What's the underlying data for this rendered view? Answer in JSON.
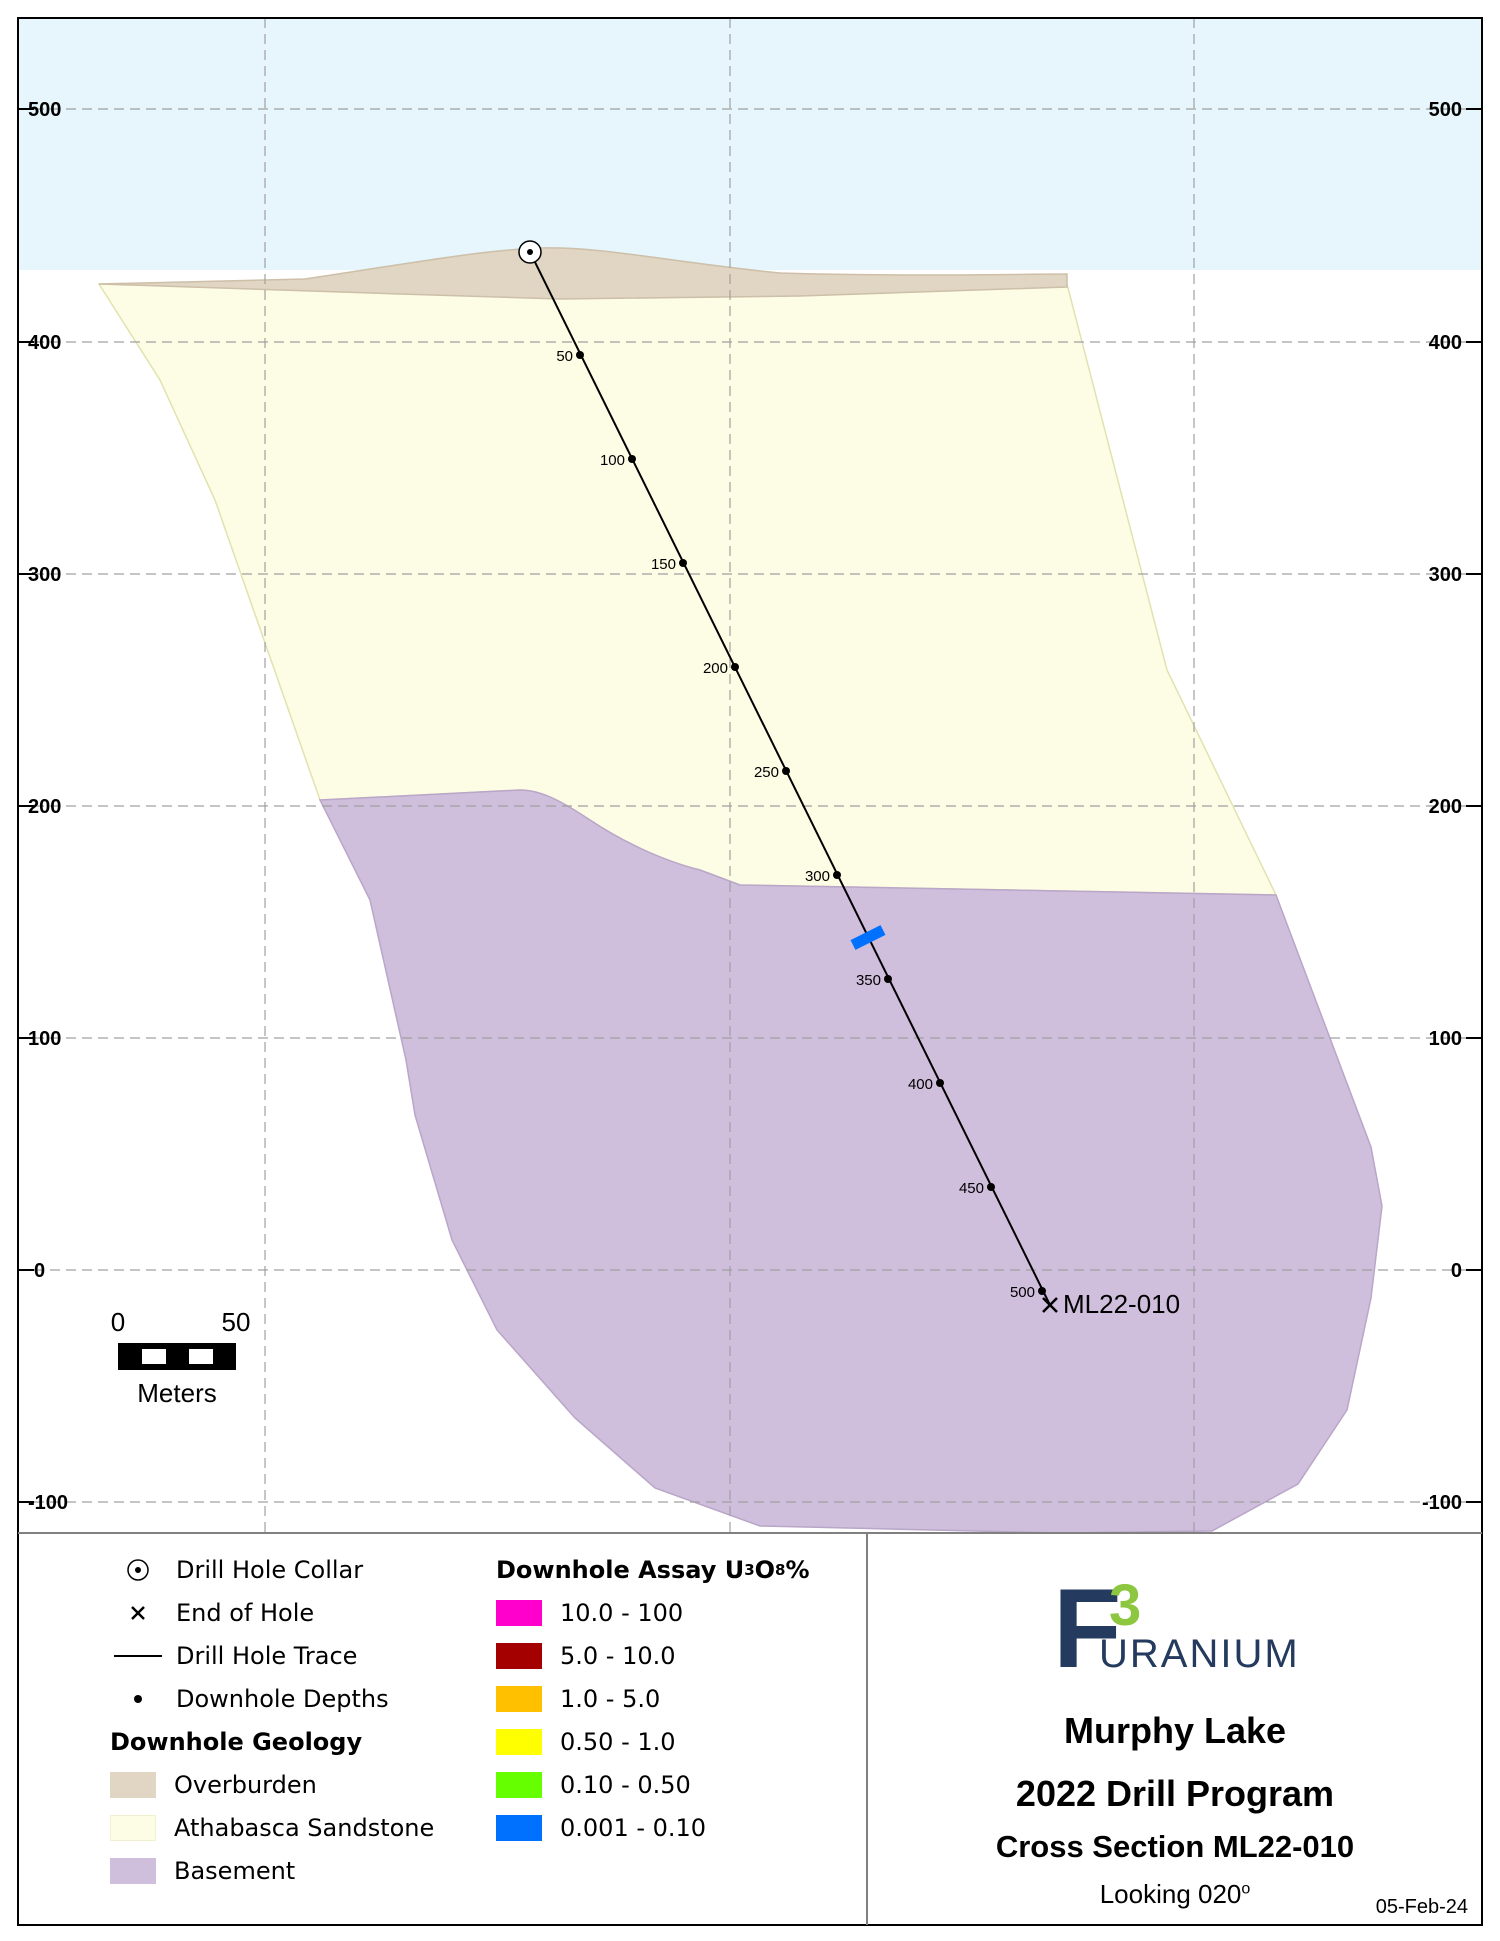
{
  "section": {
    "y_ticks": [
      "500",
      "400",
      "300",
      "200",
      "100",
      "0",
      "-100"
    ],
    "depth_labels": [
      "50",
      "100",
      "150",
      "200",
      "250",
      "300",
      "350",
      "400",
      "450",
      "500"
    ],
    "hole_id": "ML22-010",
    "scale": {
      "min": "0",
      "max": "50",
      "unit": "Meters"
    }
  },
  "legend": {
    "symbols": [
      {
        "icon": "collar-icon",
        "label": "Drill Hole Collar"
      },
      {
        "icon": "end-of-hole-icon",
        "label": "End of Hole"
      },
      {
        "icon": "trace-line-icon",
        "label": "Drill Hole Trace"
      },
      {
        "icon": "depth-dot-icon",
        "label": "Downhole Depths"
      }
    ],
    "geology_heading": "Downhole Geology",
    "geology": [
      {
        "label": "Overburden",
        "color": "#e0d6c3"
      },
      {
        "label": "Athabasca Sandstone",
        "color": "#fdfde6"
      },
      {
        "label": "Basement",
        "color": "#cfbedc"
      }
    ],
    "assay_heading_pre": "Downhole Assay U",
    "assay_heading_sub1": "3",
    "assay_heading_mid": "O",
    "assay_heading_sub2": "8",
    "assay_heading_post": "%",
    "assay": [
      {
        "label": "10.0 - 100",
        "color": "#ff00cc"
      },
      {
        "label": "5.0 - 10.0",
        "color": "#a50000"
      },
      {
        "label": "1.0 - 5.0",
        "color": "#ffc000"
      },
      {
        "label": "0.50 - 1.0",
        "color": "#ffff00"
      },
      {
        "label": "0.10 - 0.50",
        "color": "#66ff00"
      },
      {
        "label": "0.001 - 0.10",
        "color": "#0070ff"
      }
    ]
  },
  "title_block": {
    "logo_f": "F",
    "logo_3": "3",
    "logo_word": "URANIUM",
    "project": "Murphy Lake",
    "program": "2022 Drill Program",
    "section_title": "Cross Section ML22-010",
    "looking_pre": "Looking 020",
    "looking_deg": "o",
    "date": "05-Feb-24"
  },
  "colors": {
    "sky": "#e6f6fc",
    "overburden": "#e0d6c3",
    "sandstone": "#fdfde6",
    "basement": "#cfbedc",
    "assay_hit": "#0070ff",
    "logo_navy": "#243a5e",
    "logo_green": "#8dc63f"
  }
}
